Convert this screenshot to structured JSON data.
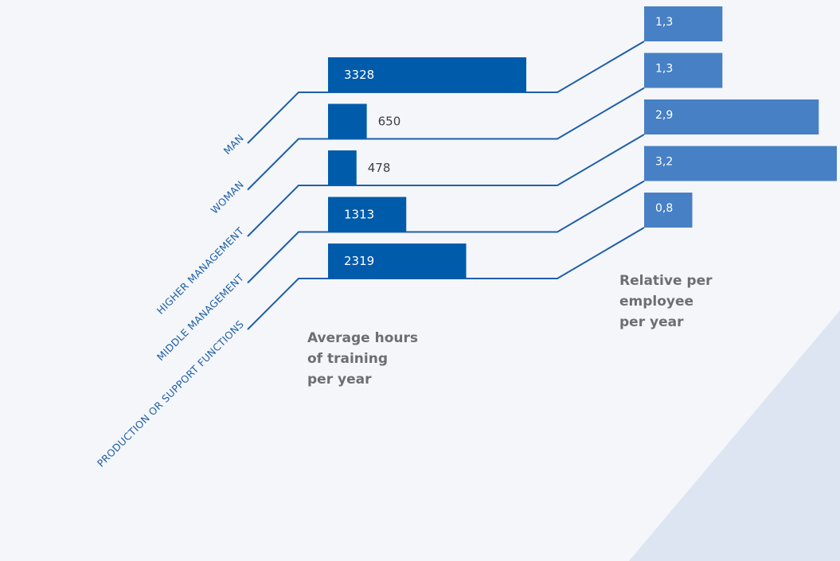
{
  "chart_data": {
    "type": "bar",
    "categories": [
      "MAN",
      "WOMAN",
      "HIGHER MANAGEMENT",
      "MIDDLE MANAGEMENT",
      "PRODUCTION OR SUPPORT FUNCTIONS"
    ],
    "series": [
      {
        "name": "Average hours\nof training\nper  year",
        "values": [
          3328,
          650,
          478,
          1313,
          2319
        ],
        "labels": [
          "3328",
          "650",
          "478",
          "1313",
          "2319"
        ]
      },
      {
        "name": "Relative per\nemployee\nper year",
        "values": [
          1.3,
          1.3,
          2.9,
          3.2,
          0.8
        ],
        "labels": [
          "1,3",
          "1,3",
          "2,9",
          "3,2",
          "0,8"
        ]
      }
    ]
  },
  "colors": {
    "background": "#f4f6fa",
    "hours_bar": "#005bab",
    "relative_bar": "#4780c4",
    "connector": "#1f5fa8",
    "caption": "#6e6e72",
    "decor": "#dce5f1"
  }
}
